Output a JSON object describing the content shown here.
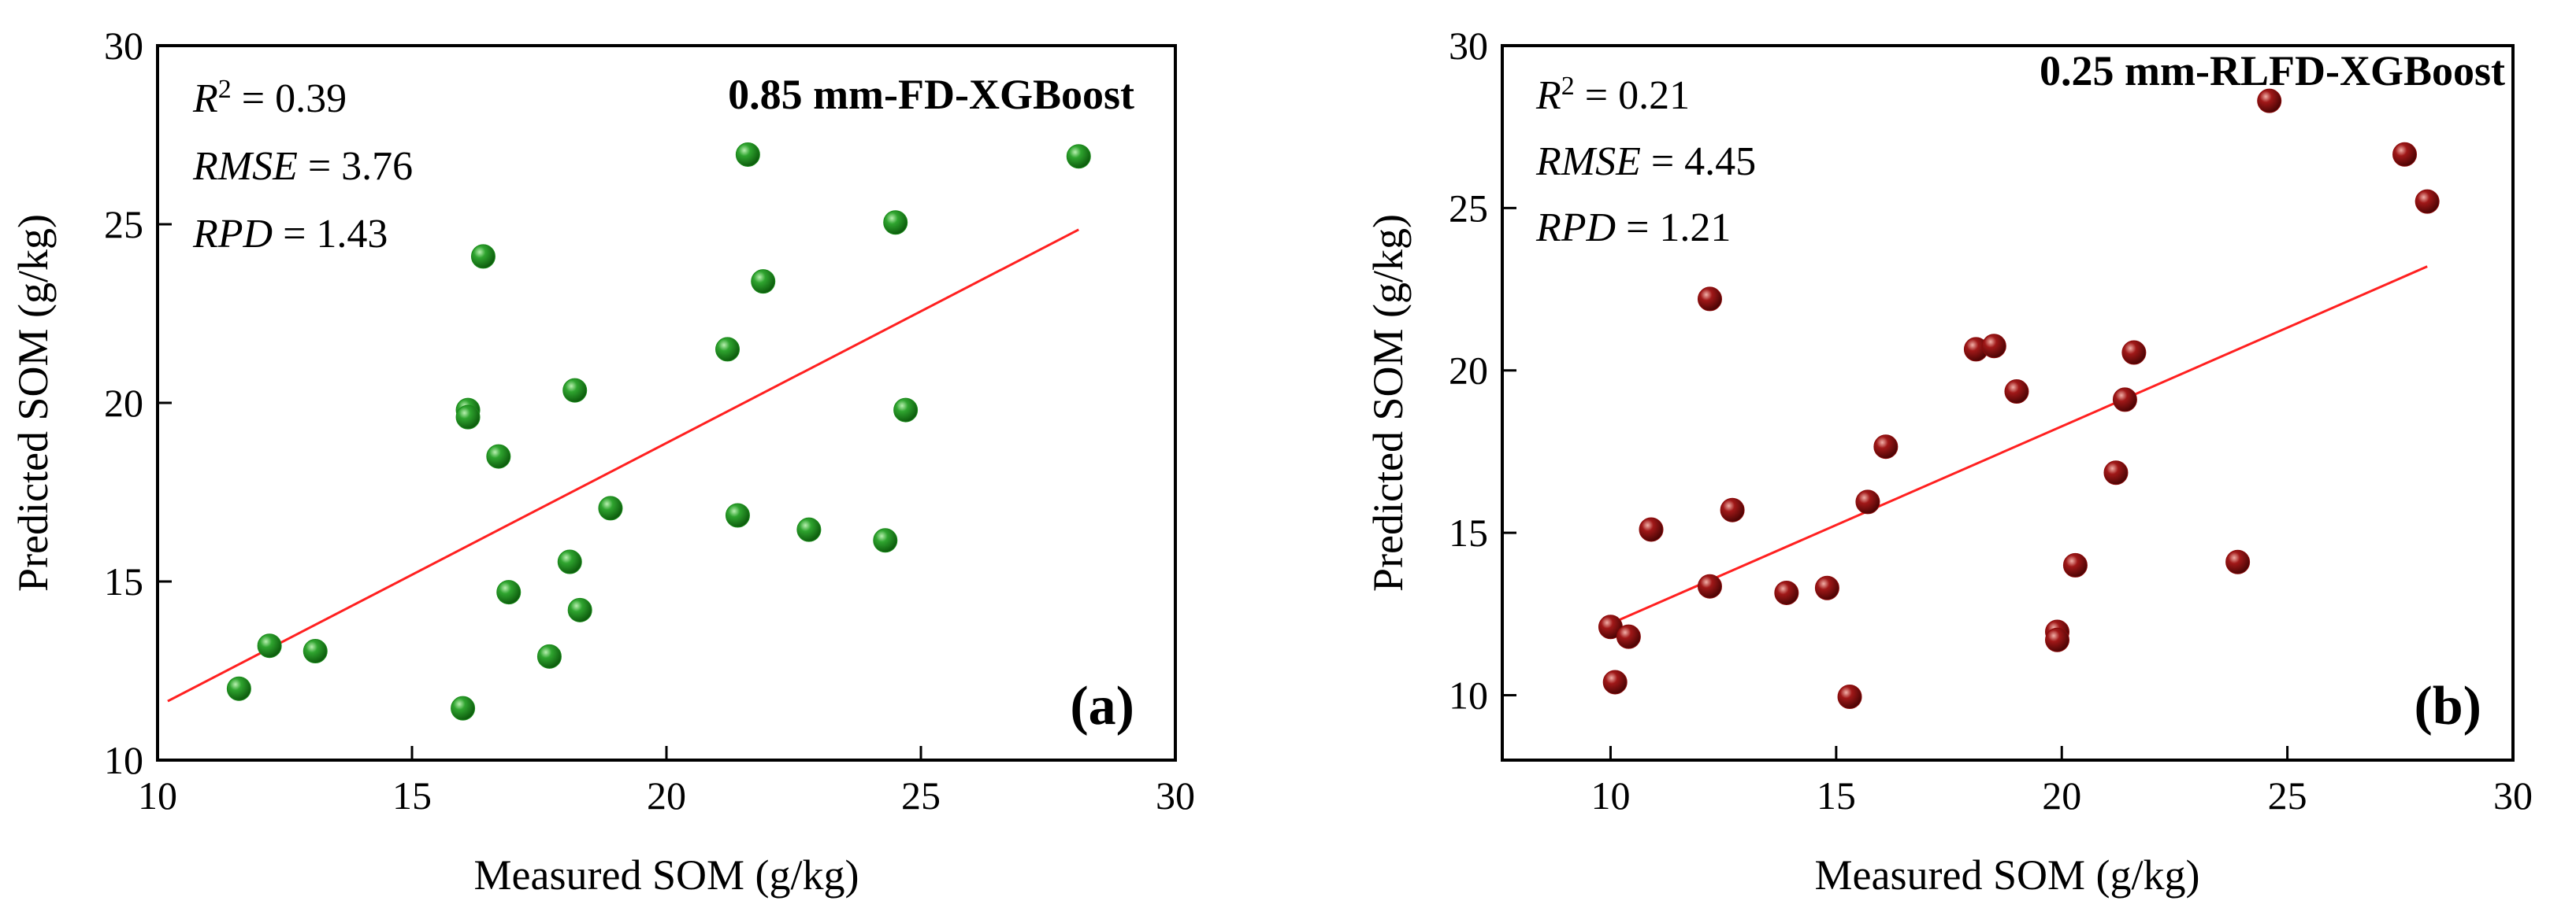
{
  "chart_data": [
    {
      "type": "scatter",
      "panel_label": "(a)",
      "title": "0.85 mm-FD-XGBoost",
      "xlabel": "Measured SOM (g/kg)",
      "ylabel": "Predicted SOM (g/kg)",
      "xlim": [
        10,
        30
      ],
      "ylim": [
        10,
        30
      ],
      "xticks": [
        10,
        15,
        20,
        25,
        30
      ],
      "yticks": [
        10,
        15,
        20,
        25,
        30
      ],
      "stats": [
        {
          "name": "R",
          "sup": "2",
          "value": " = 0.39"
        },
        {
          "name": "RMSE",
          "sup": "",
          "value": " = 3.76"
        },
        {
          "name": "RPD",
          "sup": "",
          "value": " = 1.43"
        }
      ],
      "point_color": "#1a8a1a",
      "line_color": "#ff2020",
      "fit_line": {
        "x": [
          10.2,
          28.1
        ],
        "y": [
          11.65,
          24.85
        ]
      },
      "points": [
        {
          "x": 11.6,
          "y": 12.0
        },
        {
          "x": 12.2,
          "y": 13.2
        },
        {
          "x": 13.1,
          "y": 13.05
        },
        {
          "x": 16.0,
          "y": 11.45
        },
        {
          "x": 16.1,
          "y": 19.8
        },
        {
          "x": 16.1,
          "y": 19.6
        },
        {
          "x": 16.4,
          "y": 24.1
        },
        {
          "x": 16.7,
          "y": 18.5
        },
        {
          "x": 16.9,
          "y": 14.7
        },
        {
          "x": 17.7,
          "y": 12.9
        },
        {
          "x": 18.1,
          "y": 15.55
        },
        {
          "x": 18.2,
          "y": 20.35
        },
        {
          "x": 18.3,
          "y": 14.2
        },
        {
          "x": 18.9,
          "y": 17.05
        },
        {
          "x": 21.2,
          "y": 21.5
        },
        {
          "x": 21.4,
          "y": 16.85
        },
        {
          "x": 21.6,
          "y": 26.95
        },
        {
          "x": 21.9,
          "y": 23.4
        },
        {
          "x": 22.8,
          "y": 16.45
        },
        {
          "x": 24.3,
          "y": 16.15
        },
        {
          "x": 24.5,
          "y": 25.05
        },
        {
          "x": 24.7,
          "y": 19.8
        },
        {
          "x": 28.1,
          "y": 26.9
        }
      ]
    },
    {
      "type": "scatter",
      "panel_label": "(b)",
      "title": "0.25 mm-RLFD-XGBoost",
      "xlabel": "Measured SOM (g/kg)",
      "ylabel": "Predicted SOM (g/kg)",
      "xlim": [
        7.6,
        30
      ],
      "ylim": [
        8,
        30
      ],
      "xticks": [
        10,
        15,
        20,
        25,
        30
      ],
      "yticks": [
        10,
        15,
        20,
        25,
        30
      ],
      "stats": [
        {
          "name": "R",
          "sup": "2",
          "value": " = 0.21"
        },
        {
          "name": "RMSE",
          "sup": "",
          "value": " = 4.45"
        },
        {
          "name": "RPD",
          "sup": "",
          "value": " = 1.21"
        }
      ],
      "point_color": "#8b0a0a",
      "line_color": "#ff2020",
      "fit_line": {
        "x": [
          10.0,
          28.1
        ],
        "y": [
          12.2,
          23.2
        ]
      },
      "points": [
        {
          "x": 10.0,
          "y": 12.1
        },
        {
          "x": 10.1,
          "y": 10.4
        },
        {
          "x": 10.4,
          "y": 11.8
        },
        {
          "x": 10.9,
          "y": 15.1
        },
        {
          "x": 12.2,
          "y": 22.2
        },
        {
          "x": 12.2,
          "y": 13.35
        },
        {
          "x": 12.7,
          "y": 15.7
        },
        {
          "x": 13.9,
          "y": 13.15
        },
        {
          "x": 14.8,
          "y": 13.3
        },
        {
          "x": 15.3,
          "y": 9.95
        },
        {
          "x": 15.7,
          "y": 15.95
        },
        {
          "x": 16.1,
          "y": 17.65
        },
        {
          "x": 18.1,
          "y": 20.65
        },
        {
          "x": 18.5,
          "y": 20.75
        },
        {
          "x": 19.0,
          "y": 19.35
        },
        {
          "x": 19.9,
          "y": 11.95
        },
        {
          "x": 19.9,
          "y": 11.7
        },
        {
          "x": 20.3,
          "y": 14.0
        },
        {
          "x": 21.2,
          "y": 16.85
        },
        {
          "x": 21.4,
          "y": 19.1
        },
        {
          "x": 21.6,
          "y": 20.55
        },
        {
          "x": 23.9,
          "y": 14.1
        },
        {
          "x": 24.6,
          "y": 28.3
        },
        {
          "x": 27.6,
          "y": 26.65
        },
        {
          "x": 28.1,
          "y": 25.2
        }
      ]
    }
  ]
}
